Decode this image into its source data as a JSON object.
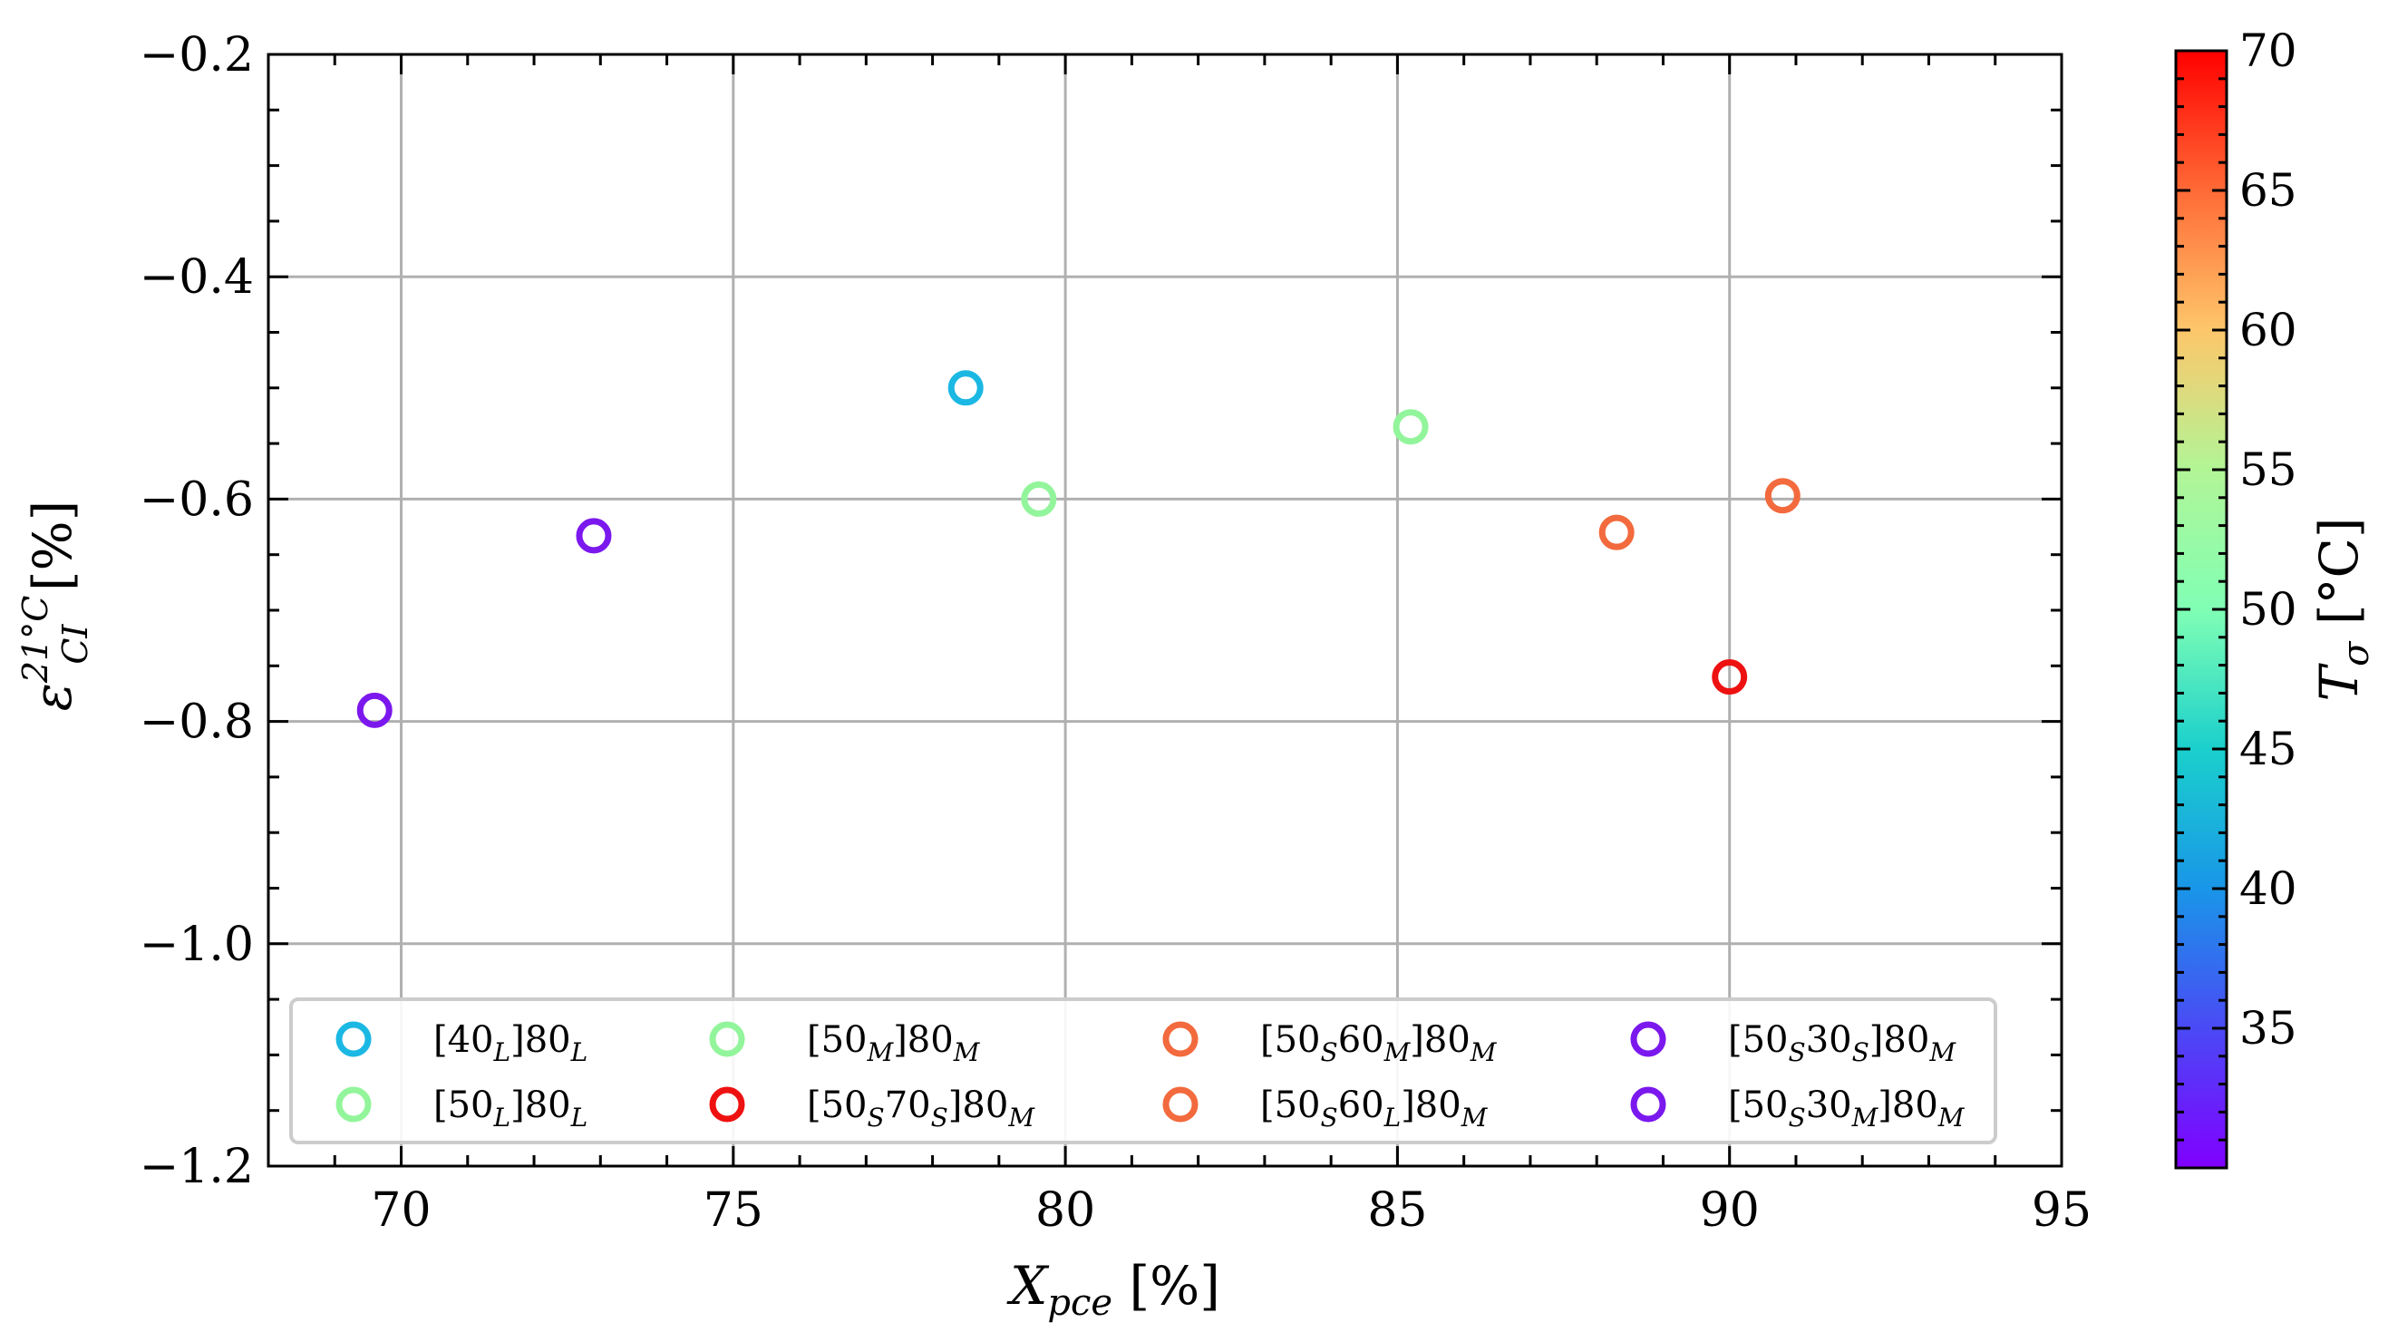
{
  "chart_data": {
    "type": "scatter",
    "title": "",
    "xlabel": "X_pce [%]",
    "ylabel": "ε_CI^21°C [%]",
    "xlabel_parts": {
      "main": "X",
      "sub": "pce",
      "unit": " [%]"
    },
    "ylabel_parts": {
      "main": "ε",
      "sub": "CI",
      "sup": "21°C",
      "unit": " [%]"
    },
    "xlim": [
      68,
      95
    ],
    "ylim": [
      -1.2,
      -0.2
    ],
    "xticks": [
      70,
      75,
      80,
      85,
      90,
      95
    ],
    "yticks": [
      -1.2,
      -1.0,
      -0.8,
      -0.6,
      -0.4,
      -0.2
    ],
    "xtick_labels": [
      "70",
      "75",
      "80",
      "85",
      "90",
      "95"
    ],
    "ytick_labels": [
      "−1.2",
      "−1.0",
      "−0.8",
      "−0.6",
      "−0.4",
      "−0.2"
    ],
    "grid": true,
    "legend_position": "lower-center",
    "series": [
      {
        "name": "[40_L]80_L",
        "label": {
          "parts": [
            [
              "[40",
              ""
            ],
            [
              "L",
              "sub"
            ],
            [
              "]80",
              ""
            ],
            [
              "L",
              "sub"
            ]
          ]
        },
        "color": "#1bb8e3",
        "t_sigma": 40,
        "x": 78.5,
        "y": -0.5
      },
      {
        "name": "[50_L]80_L",
        "label": {
          "parts": [
            [
              "[50",
              ""
            ],
            [
              "L",
              "sub"
            ],
            [
              "]80",
              ""
            ],
            [
              "L",
              "sub"
            ]
          ]
        },
        "color": "#93f59b",
        "t_sigma": 52,
        "x": null,
        "y": null
      },
      {
        "name": "[50_M]80_M",
        "label": {
          "parts": [
            [
              "[50",
              ""
            ],
            [
              "M",
              "sub"
            ],
            [
              "]80",
              ""
            ],
            [
              "M",
              "sub"
            ]
          ]
        },
        "color": "#93f59b",
        "t_sigma": 52,
        "x": 79.6,
        "y": -0.6
      },
      {
        "name": "[50_M]80_M (2)",
        "label": null,
        "color": "#93f59b",
        "t_sigma": 52,
        "x": 85.2,
        "y": -0.535
      },
      {
        "name": "[50_S70_S]80_M",
        "label": {
          "parts": [
            [
              "[50",
              ""
            ],
            [
              "S",
              "sub"
            ],
            [
              "70",
              ""
            ],
            [
              "S",
              "sub"
            ],
            [
              "]80",
              ""
            ],
            [
              "M",
              "sub"
            ]
          ]
        },
        "color": "#ee1111",
        "t_sigma": 70,
        "x": 90.0,
        "y": -0.76
      },
      {
        "name": "[50_S60_M]80_M",
        "label": {
          "parts": [
            [
              "[50",
              ""
            ],
            [
              "S",
              "sub"
            ],
            [
              "60",
              ""
            ],
            [
              "M",
              "sub"
            ],
            [
              "]80",
              ""
            ],
            [
              "M",
              "sub"
            ]
          ]
        },
        "color": "#f26a3d",
        "t_sigma": 63,
        "x": 88.3,
        "y": -0.63
      },
      {
        "name": "[50_S60_L]80_M",
        "label": {
          "parts": [
            [
              "[50",
              ""
            ],
            [
              "S",
              "sub"
            ],
            [
              "60",
              ""
            ],
            [
              "L",
              "sub"
            ],
            [
              "]80",
              ""
            ],
            [
              "M",
              "sub"
            ]
          ]
        },
        "color": "#f26a3d",
        "t_sigma": 63,
        "x": 90.8,
        "y": -0.597
      },
      {
        "name": "[50_S30_S]80_M",
        "label": {
          "parts": [
            [
              "[50",
              ""
            ],
            [
              "S",
              "sub"
            ],
            [
              "30",
              ""
            ],
            [
              "S",
              "sub"
            ],
            [
              "]80",
              ""
            ],
            [
              "M",
              "sub"
            ]
          ]
        },
        "color": "#7b18ee",
        "t_sigma": 30,
        "x": 72.9,
        "y": -0.633
      },
      {
        "name": "[50_S30_M]80_M",
        "label": {
          "parts": [
            [
              "[50",
              ""
            ],
            [
              "S",
              "sub"
            ],
            [
              "30",
              ""
            ],
            [
              "M",
              "sub"
            ],
            [
              "]80",
              ""
            ],
            [
              "M",
              "sub"
            ]
          ]
        },
        "color": "#7b18ee",
        "t_sigma": 30,
        "x": 69.6,
        "y": -0.79
      }
    ],
    "legend_order": [
      0,
      2,
      5,
      7,
      1,
      4,
      6,
      8
    ],
    "colorbar": {
      "label": "T_σ [°C]",
      "label_parts": {
        "main": "T",
        "sub": "σ",
        "unit": " [°C]"
      },
      "range": [
        30,
        70
      ],
      "ticks": [
        35,
        40,
        45,
        50,
        55,
        60,
        65,
        70
      ],
      "tick_labels": [
        "35",
        "40",
        "45",
        "50",
        "55",
        "60",
        "65",
        "70"
      ],
      "colormap": "rainbow"
    }
  }
}
